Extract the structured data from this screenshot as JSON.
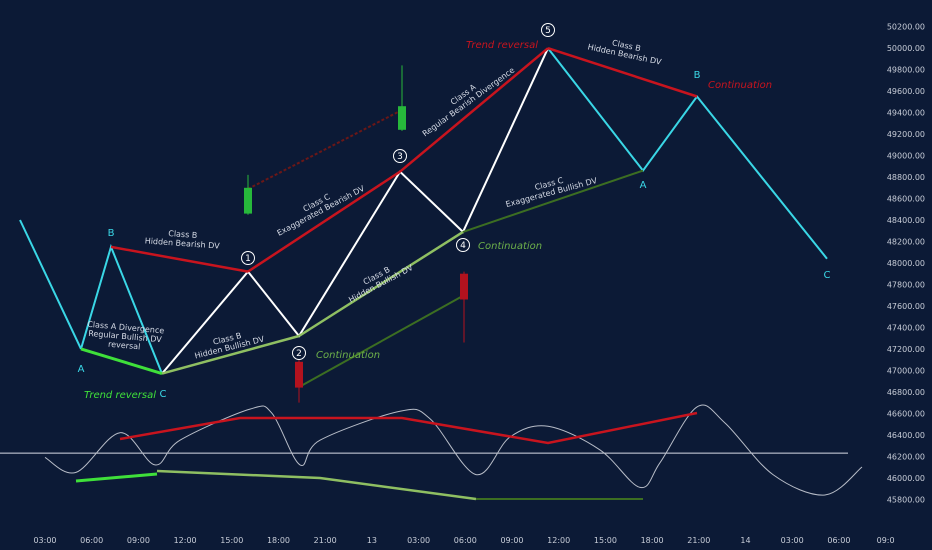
{
  "colors": {
    "background": "#0c1a36",
    "cyan": "#3ad7e6",
    "white": "#ffffff",
    "red": "#c8141e",
    "dark_red": "#6b1717",
    "light_green": "#8fbf62",
    "bright_green": "#3fe03a",
    "dark_green": "#3c6e22",
    "candle_green": "#27b83b",
    "candle_red": "#b3121e",
    "label_green": "#6db04a",
    "axis_text": "#c8cdd8",
    "oscillator": "#b8bdc8",
    "baseline": "#d8dce6"
  },
  "chart_data": {
    "type": "line",
    "y_axis": {
      "min": 45700,
      "max": 50300,
      "ticks": [
        "50200.00",
        "50000.00",
        "49800.00",
        "49600.00",
        "49400.00",
        "49200.00",
        "49000.00",
        "48800.00",
        "48600.00",
        "48400.00",
        "48200.00",
        "48000.00",
        "47800.00",
        "47600.00",
        "47400.00",
        "47200.00",
        "47000.00",
        "46800.00",
        "46600.00",
        "46400.00",
        "46200.00",
        "46000.00",
        "45800.00"
      ],
      "tick_values": [
        50200,
        50000,
        49800,
        49600,
        49400,
        49200,
        49000,
        48800,
        48600,
        48400,
        48200,
        48000,
        47800,
        47600,
        47400,
        47200,
        47000,
        46800,
        46600,
        46400,
        46200,
        46000,
        45800
      ]
    },
    "x_axis": {
      "ticks": [
        "03:00",
        "06:00",
        "09:00",
        "12:00",
        "15:00",
        "18:00",
        "21:00",
        "13",
        "03:00",
        "06:00",
        "09:00",
        "12:00",
        "15:00",
        "18:00",
        "21:00",
        "14",
        "03:00",
        "06:00",
        "09:0"
      ]
    },
    "price_legs": [
      {
        "color": "cyan",
        "points": [
          [
            48400,
            "l0"
          ],
          [
            47200,
            "A1"
          ]
        ]
      },
      {
        "color": "cyan",
        "points": [
          [
            47200,
            "A1"
          ],
          [
            48150,
            "B1"
          ],
          [
            46970,
            "C1"
          ]
        ]
      },
      {
        "color": "white",
        "points": [
          [
            46970,
            "C1"
          ],
          [
            47920,
            "p1"
          ],
          [
            47320,
            "p2"
          ],
          [
            48850,
            "p3"
          ],
          [
            48290,
            "p4"
          ],
          [
            50000,
            "p5"
          ]
        ]
      },
      {
        "color": "cyan",
        "points": [
          [
            50000,
            "p5"
          ],
          [
            48860,
            "A2"
          ],
          [
            49550,
            "B2"
          ],
          [
            48040,
            "C2"
          ]
        ]
      }
    ],
    "divergence_lines": [
      {
        "color": "bright_green",
        "width": 3,
        "from": [
          47200,
          "A1"
        ],
        "to": [
          46970,
          "C1"
        ]
      },
      {
        "color": "red",
        "width": 2.5,
        "from": [
          48150,
          "B1"
        ],
        "to": [
          47920,
          "p1"
        ]
      },
      {
        "color": "light_green",
        "width": 2.5,
        "from": [
          46970,
          "C1"
        ],
        "to": [
          47320,
          "p2"
        ]
      },
      {
        "color": "red",
        "width": 2.5,
        "from": [
          47920,
          "p1"
        ],
        "to": [
          48850,
          "p3"
        ]
      },
      {
        "color": "light_green",
        "width": 2.5,
        "from": [
          47320,
          "p2"
        ],
        "to": [
          48290,
          "p4"
        ]
      },
      {
        "color": "red",
        "width": 2.5,
        "from": [
          48850,
          "p3"
        ],
        "to": [
          50000,
          "p5"
        ]
      },
      {
        "color": "dark_green",
        "width": 2,
        "from": [
          48290,
          "p4"
        ],
        "to": [
          48860,
          "A2"
        ]
      },
      {
        "color": "red",
        "width": 2.5,
        "from": [
          50000,
          "p5"
        ],
        "to": [
          49550,
          "B2"
        ]
      },
      {
        "color": "dark_red",
        "width": 2,
        "dash": true,
        "from": [
          48690,
          "c1"
        ],
        "to": [
          49420,
          "c3"
        ]
      },
      {
        "color": "dark_green",
        "width": 2,
        "from": [
          46850,
          "c2"
        ],
        "to": [
          47700,
          "c4"
        ]
      }
    ],
    "candles": [
      {
        "color": "candle_green",
        "open": 48460,
        "close": 48700,
        "high": 48820,
        "low": 48450
      },
      {
        "color": "candle_red",
        "open": 47080,
        "close": 46840,
        "high": 47100,
        "low": 46700
      },
      {
        "color": "candle_green",
        "open": 49240,
        "close": 49460,
        "high": 49840,
        "low": 49230
      },
      {
        "color": "candle_red",
        "open": 47900,
        "close": 47660,
        "high": 47920,
        "low": 47260
      }
    ],
    "oscillator": {
      "values": [
        46190,
        46050,
        46420,
        46120,
        46350,
        46640,
        46600,
        46120,
        46350,
        46620,
        46550,
        46030,
        46380,
        46480,
        46260,
        45910,
        46140,
        46660,
        46510,
        46030,
        45840,
        46100
      ]
    },
    "oscillator_lines": [
      {
        "color": "bright_green",
        "width": 3
      },
      {
        "color": "red",
        "width": 2.5
      },
      {
        "color": "light_green",
        "width": 2.5
      },
      {
        "color": "red",
        "width": 2.5
      },
      {
        "color": "dark_green",
        "width": 2
      }
    ],
    "baseline_level": 46230,
    "points": {
      "A1": "A",
      "B1": "B",
      "C1": "C",
      "A2": "A",
      "B2": "B",
      "C2": "C"
    },
    "wave_numbers": [
      "1",
      "2",
      "3",
      "4",
      "5"
    ],
    "annotations": [
      {
        "id": "a-classA",
        "lines": [
          "Class A Divergence",
          "Regular Bullish DV",
          "reversal"
        ]
      },
      {
        "id": "a-classB-hb1",
        "lines": [
          "Class B",
          "Hidden Bearish DV"
        ]
      },
      {
        "id": "a-classB-hbull1",
        "lines": [
          "Class B",
          "Hidden Bullish DV"
        ]
      },
      {
        "id": "a-classC-eb",
        "lines": [
          "Class C",
          "Exaggerated Bearish DV"
        ]
      },
      {
        "id": "a-classB-hbull2",
        "lines": [
          "Class B",
          "Hidden Bullish DV"
        ]
      },
      {
        "id": "a-classA-rb",
        "lines": [
          "Class A",
          "Regular Bearish Divergence"
        ]
      },
      {
        "id": "a-classC-ebull",
        "lines": [
          "Class C",
          "Exaggerated Bullish DV"
        ]
      },
      {
        "id": "a-classB-hb2",
        "lines": [
          "Class B",
          "Hidden Bearish DV"
        ]
      }
    ],
    "tags": [
      {
        "id": "t-trend-rev-1",
        "text": "Trend reversal",
        "color": "bright_green"
      },
      {
        "id": "t-continuation-1",
        "text": "Continuation",
        "color": "label_green"
      },
      {
        "id": "t-continuation-2",
        "text": "Continuation",
        "color": "label_green"
      },
      {
        "id": "t-trend-rev-2",
        "text": "Trend reversal",
        "color": "red"
      },
      {
        "id": "t-continuation-3",
        "text": "Continuation",
        "color": "red"
      }
    ]
  }
}
